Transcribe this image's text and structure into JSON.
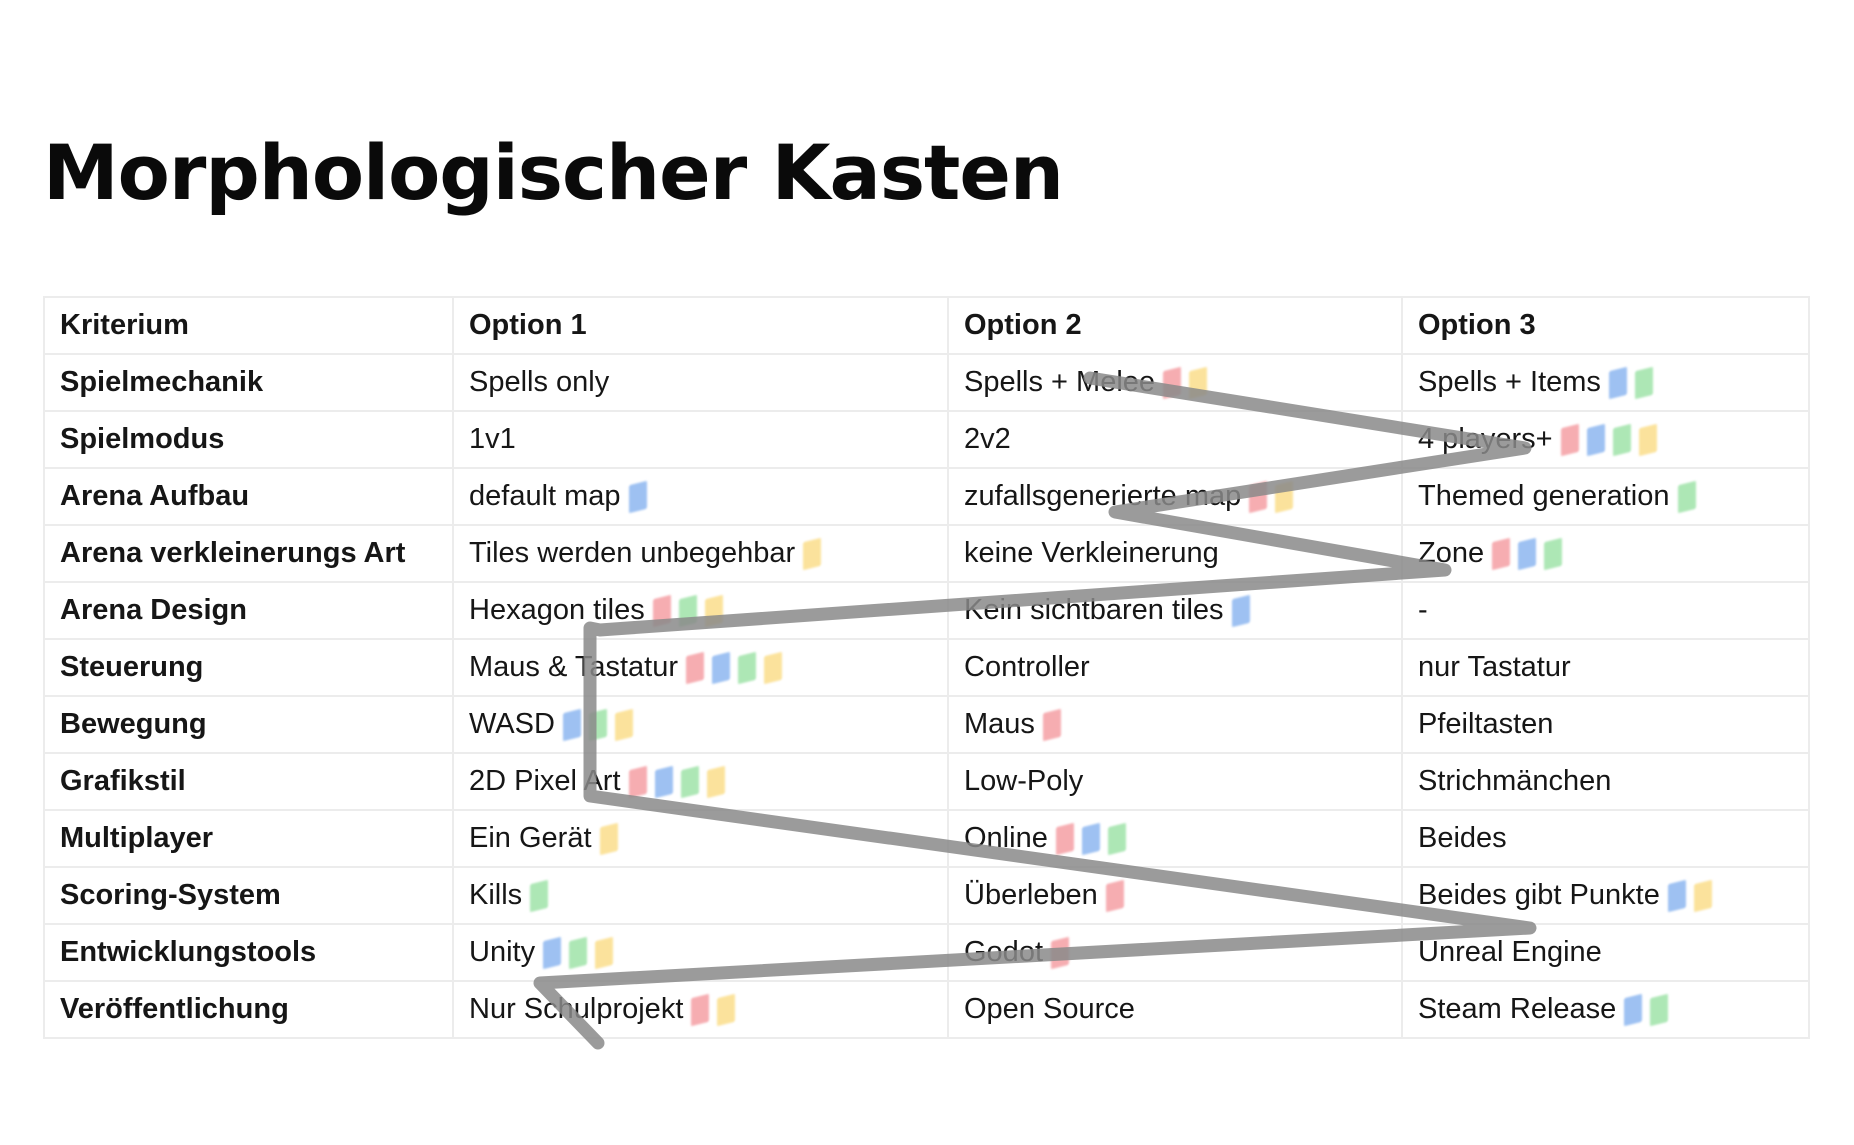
{
  "title": "Morphologischer Kasten",
  "headers": [
    "Kriterium",
    "Option 1",
    "Option 2",
    "Option 3"
  ],
  "vote_colors": {
    "red": "#ef6b73",
    "blue": "#4f8fe8",
    "green": "#6bd47a",
    "yellow": "#f8cc4c"
  },
  "selection_line_color": "#8a8a8a",
  "rows": [
    {
      "criterion": "Spielmechanik",
      "options": [
        {
          "text": "Spells only",
          "votes": []
        },
        {
          "text": "Spells + Melee",
          "votes": [
            "red",
            "yellow"
          ]
        },
        {
          "text": "Spells + Items",
          "votes": [
            "blue",
            "green"
          ]
        }
      ]
    },
    {
      "criterion": "Spielmodus",
      "options": [
        {
          "text": "1v1",
          "votes": []
        },
        {
          "text": "2v2",
          "votes": []
        },
        {
          "text": "4 players+",
          "votes": [
            "red",
            "blue",
            "green",
            "yellow"
          ]
        }
      ]
    },
    {
      "criterion": "Arena Aufbau",
      "options": [
        {
          "text": "default map",
          "votes": [
            "blue"
          ]
        },
        {
          "text": "zufallsgenerierte map",
          "votes": [
            "red",
            "yellow"
          ]
        },
        {
          "text": "Themed generation",
          "votes": [
            "green"
          ]
        }
      ]
    },
    {
      "criterion": "Arena verkleinerungs Art",
      "options": [
        {
          "text": "Tiles werden unbegehbar",
          "votes": [
            "yellow"
          ]
        },
        {
          "text": "keine Verkleinerung",
          "votes": []
        },
        {
          "text": "Zone",
          "votes": [
            "red",
            "blue",
            "green"
          ]
        }
      ]
    },
    {
      "criterion": "Arena Design",
      "options": [
        {
          "text": "Hexagon tiles",
          "votes": [
            "red",
            "green",
            "yellow"
          ]
        },
        {
          "text": "Kein sichtbaren tiles",
          "votes": [
            "blue"
          ]
        },
        {
          "text": "-",
          "votes": []
        }
      ]
    },
    {
      "criterion": "Steuerung",
      "options": [
        {
          "text": "Maus & Tastatur",
          "votes": [
            "red",
            "blue",
            "green",
            "yellow"
          ]
        },
        {
          "text": "Controller",
          "votes": []
        },
        {
          "text": "nur Tastatur",
          "votes": []
        }
      ]
    },
    {
      "criterion": "Bewegung",
      "options": [
        {
          "text": "WASD",
          "votes": [
            "blue",
            "green",
            "yellow"
          ]
        },
        {
          "text": "Maus",
          "votes": [
            "red"
          ]
        },
        {
          "text": "Pfeiltasten",
          "votes": []
        }
      ]
    },
    {
      "criterion": "Grafikstil",
      "options": [
        {
          "text": "2D Pixel Art",
          "votes": [
            "red",
            "blue",
            "green",
            "yellow"
          ]
        },
        {
          "text": "Low-Poly",
          "votes": []
        },
        {
          "text": "Strichmänchen",
          "votes": []
        }
      ]
    },
    {
      "criterion": "Multiplayer",
      "options": [
        {
          "text": "Ein Gerät",
          "votes": [
            "yellow"
          ]
        },
        {
          "text": "Online",
          "votes": [
            "red",
            "blue",
            "green"
          ]
        },
        {
          "text": "Beides",
          "votes": []
        }
      ]
    },
    {
      "criterion": "Scoring-System",
      "options": [
        {
          "text": "Kills",
          "votes": [
            "green"
          ]
        },
        {
          "text": "Überleben",
          "votes": [
            "red"
          ]
        },
        {
          "text": "Beides gibt Punkte",
          "votes": [
            "blue",
            "yellow"
          ]
        }
      ]
    },
    {
      "criterion": "Entwicklungstools",
      "options": [
        {
          "text": "Unity",
          "votes": [
            "blue",
            "green",
            "yellow"
          ]
        },
        {
          "text": "Godot",
          "votes": [
            "red"
          ]
        },
        {
          "text": "Unreal Engine",
          "votes": []
        }
      ]
    },
    {
      "criterion": "Veröffentlichung",
      "options": [
        {
          "text": "Nur Schulprojekt",
          "votes": [
            "red",
            "yellow"
          ]
        },
        {
          "text": "Open Source",
          "votes": []
        },
        {
          "text": "Steam Release",
          "votes": [
            "blue",
            "green"
          ]
        }
      ]
    }
  ]
}
